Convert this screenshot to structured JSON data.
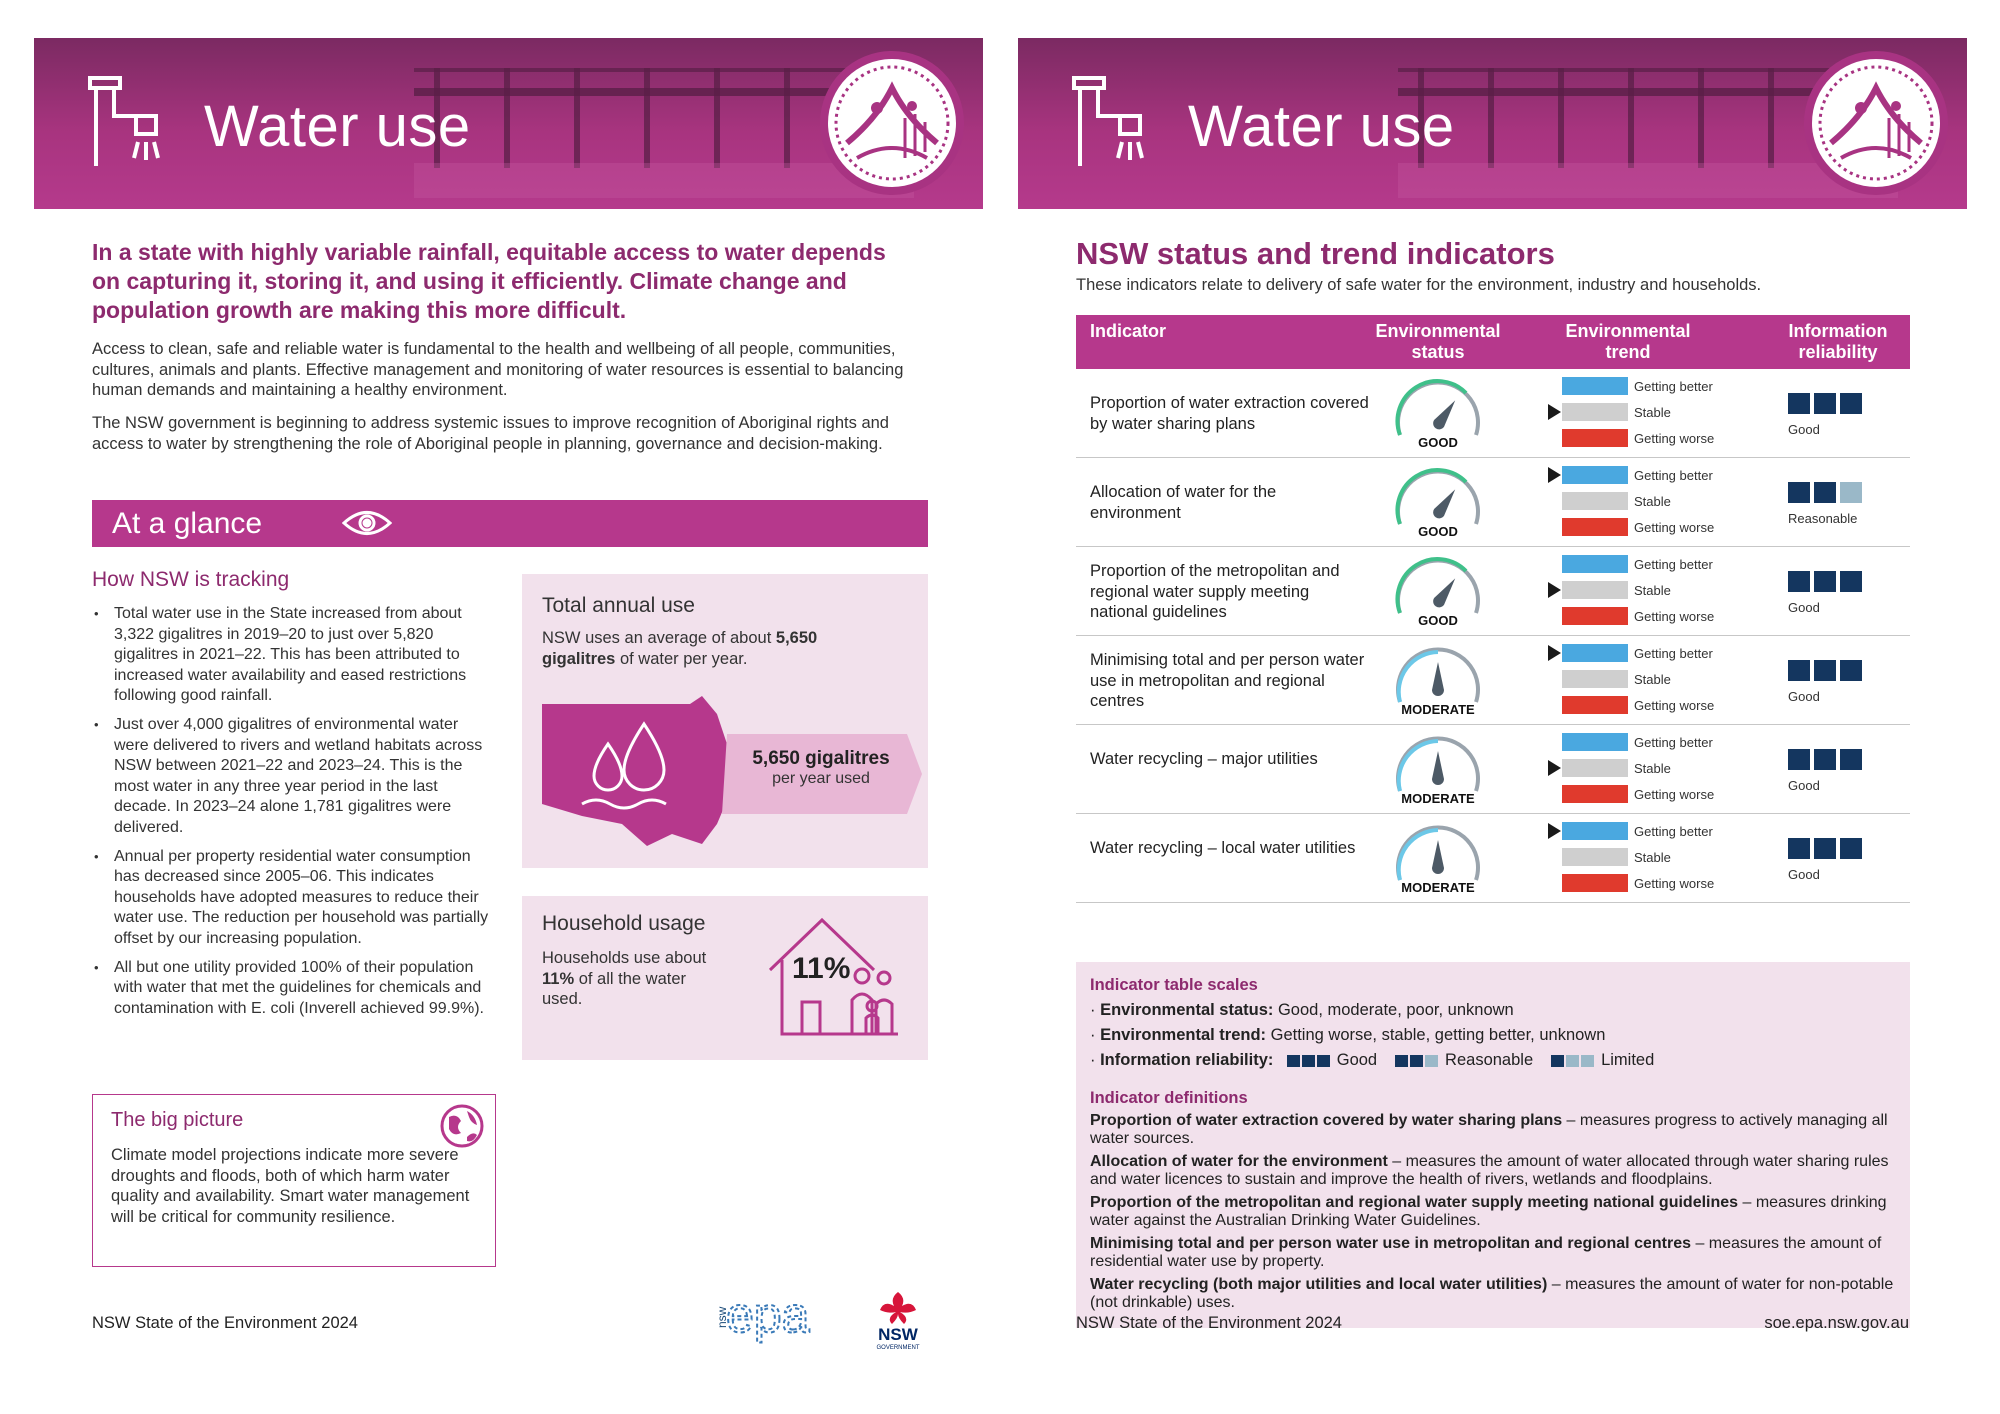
{
  "colors": {
    "magenta": "#b6388c",
    "dark_magenta": "#8d2a6e",
    "pink_bg": "#f2e1ec",
    "navy": "#14365f",
    "light_blue": "#9ab8c8",
    "better_blue": "#4aa8e0",
    "stable_grey": "#cfcfcf",
    "worse_red": "#e03a2d"
  },
  "left": {
    "banner_title": "Water use",
    "intro": "In a state with highly variable rainfall, equitable access to water depends on capturing it, storing it, and using it efficiently. Climate change and population growth are making this more difficult.",
    "para1": "Access to clean, safe and reliable water is fundamental to the health and wellbeing of all people, communities, cultures, animals and plants. Effective management and monitoring of water resources is essential to balancing human demands and maintaining a healthy environment.",
    "para2": "The NSW government is beginning to address systemic issues to improve recognition of Aboriginal rights and access to water by strengthening the role of Aboriginal people in planning, governance and decision-making.",
    "glance_title": "At a glance",
    "tracking_title": "How NSW is tracking",
    "bullets": [
      "Total water use in the State increased from about 3,322 gigalitres in 2019–20 to just over 5,820 gigalitres in 2021–22. This has been attributed to increased water availability and eased restrictions following good rainfall.",
      "Just over 4,000 gigalitres of environmental water were delivered to rivers and wetland habitats across NSW between 2021–22 and 2023–24. This is the most water in any three year period in the last decade. In 2023–24 alone 1,781 gigalitres were delivered.",
      "Annual per property residential water consumption has decreased since 2005–06. This indicates households have adopted measures to reduce their water use. The reduction per household was partially offset by our increasing population.",
      "All but one utility provided 100% of their population with water that met the guidelines for chemicals and contamination with E. coli (Inverell achieved 99.9%)."
    ],
    "total_card": {
      "title": "Total annual use",
      "text_pre": "NSW uses an average of about ",
      "text_bold": "5,650 gigalitres",
      "text_post": " of water per year.",
      "callout_value": "5,650 gigalitres",
      "callout_label": "per year used"
    },
    "household_card": {
      "title": "Household usage",
      "text_pre": "Households use about ",
      "text_bold": "11%",
      "text_post": " of all the water used.",
      "percent": "11%"
    },
    "big_picture": {
      "title": "The big picture",
      "text": "Climate model projections indicate more severe droughts and floods, both of which harm water quality and availability. Smart water management will be critical for community resilience."
    },
    "footer": "NSW State of the Environment 2024",
    "logo_epa": "epa",
    "logo_epa_nsw": "nsw",
    "logo_gov": "NSW",
    "logo_gov_sub": "GOVERNMENT"
  },
  "right": {
    "banner_title": "Water use",
    "title": "NSW status and trend indicators",
    "subtitle": "These indicators relate to delivery of safe water for the environment, industry and households.",
    "headers": {
      "indicator": "Indicator",
      "status_1": "Environmental",
      "status_2": "status",
      "trend_1": "Environmental",
      "trend_2": "trend",
      "rel_1": "Information",
      "rel_2": "reliability"
    },
    "trend_labels": {
      "better": "Getting better",
      "stable": "Stable",
      "worse": "Getting worse"
    },
    "rows": [
      {
        "indicator": "Proportion of water extraction covered by water sharing plans",
        "status": "GOOD",
        "trend": "stable",
        "reliability": "Good",
        "rel_level": 3
      },
      {
        "indicator": "Allocation of water for the environment",
        "status": "GOOD",
        "trend": "better",
        "reliability": "Reasonable",
        "rel_level": 2
      },
      {
        "indicator": "Proportion of the metropolitan and regional water supply meeting national guidelines",
        "status": "GOOD",
        "trend": "stable",
        "reliability": "Good",
        "rel_level": 3
      },
      {
        "indicator": "Minimising total and per person water use in metropolitan and regional centres",
        "status": "MODERATE",
        "trend": "better",
        "reliability": "Good",
        "rel_level": 3
      },
      {
        "indicator": "Water recycling – major utilities",
        "status": "MODERATE",
        "trend": "stable",
        "reliability": "Good",
        "rel_level": 3
      },
      {
        "indicator": "Water recycling – local water utilities",
        "status": "MODERATE",
        "trend": "better",
        "reliability": "Good",
        "rel_level": 3
      }
    ],
    "scales": {
      "heading": "Indicator table scales",
      "status_label": "Environmental status:",
      "status_text": " Good, moderate, poor, unknown",
      "trend_label": "Environmental trend:",
      "trend_text": " Getting worse, stable, getting better, unknown",
      "rel_label": "Information reliability:",
      "rel_good": "Good",
      "rel_reasonable": "Reasonable",
      "rel_limited": "Limited"
    },
    "definitions_heading": "Indicator definitions",
    "definitions": [
      {
        "term": "Proportion of water extraction covered by water sharing plans",
        "text": " – measures progress to actively managing all water sources."
      },
      {
        "term": "Allocation of water for the environment",
        "text": " – measures the amount of water allocated through water sharing rules and water licences to sustain and improve the health of rivers, wetlands and floodplains."
      },
      {
        "term": "Proportion of the metropolitan and regional water supply meeting national guidelines",
        "text": " – measures drinking water against the Australian Drinking Water Guidelines."
      },
      {
        "term": "Minimising total and per person water use in metropolitan and regional centres",
        "text": " – measures the amount of residential water use by property."
      },
      {
        "term": "Water recycling (both major utilities and local water utilities)",
        "text": " – measures the amount of water for non-potable (not drinkable) uses."
      }
    ],
    "footer_left": "NSW State of the Environment 2024",
    "footer_right": "soe.epa.nsw.gov.au"
  }
}
